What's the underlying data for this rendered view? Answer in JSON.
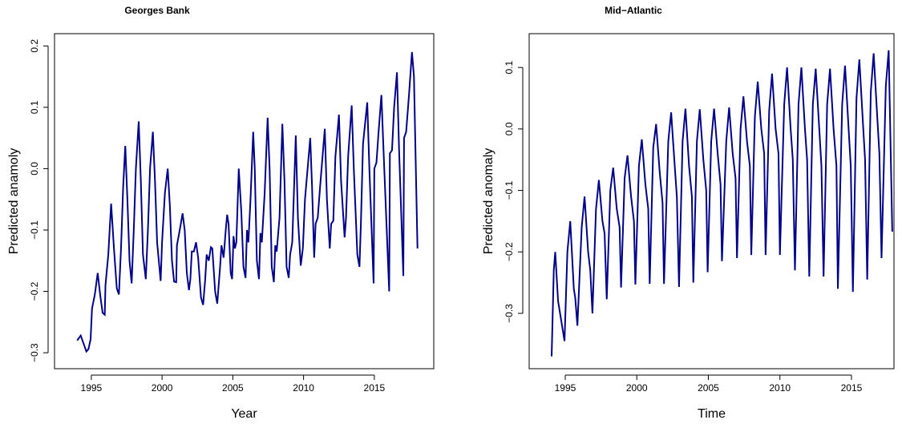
{
  "chart_data": [
    {
      "type": "line",
      "title": "Georges Bank",
      "x_label": "Year",
      "y_label": "Predicted anamoly",
      "color": "#00008B",
      "xlim": [
        1992.4,
        2019.2
      ],
      "xticks": [
        1995,
        2000,
        2005,
        2010,
        2015
      ],
      "ylim": [
        -0.326,
        0.22
      ],
      "yticks": [
        {
          "value": -0.3,
          "label": "−0.3"
        },
        {
          "value": -0.2,
          "label": "−0.2"
        },
        {
          "value": -0.1,
          "label": "−0.1"
        },
        {
          "value": 0,
          "label": "0.0"
        },
        0.1,
        0.2
      ],
      "x": [
        1994.0,
        1994.25,
        1994.5,
        1994.65,
        1994.8,
        1994.95,
        1995.05,
        1995.25,
        1995.45,
        1995.65,
        1995.8,
        1995.95,
        1996.0,
        1996.2,
        1996.4,
        1996.6,
        1996.8,
        1996.95,
        1997.1,
        1997.25,
        1997.4,
        1997.55,
        1997.7,
        1997.85,
        1998.0,
        1998.15,
        1998.35,
        1998.5,
        1998.65,
        1998.85,
        1999.0,
        1999.15,
        1999.35,
        1999.5,
        1999.65,
        1999.9,
        2000.0,
        2000.2,
        2000.4,
        2000.55,
        2000.7,
        2000.85,
        2001.0,
        2001.05,
        2001.25,
        2001.45,
        2001.6,
        2001.75,
        2001.9,
        2002.0,
        2002.1,
        2002.25,
        2002.4,
        2002.55,
        2002.75,
        2002.9,
        2003.05,
        2003.15,
        2003.3,
        2003.45,
        2003.55,
        2003.75,
        2003.9,
        2004.1,
        2004.2,
        2004.35,
        2004.5,
        2004.6,
        2004.7,
        2004.85,
        2004.95,
        2005.05,
        2005.15,
        2005.25,
        2005.42,
        2005.6,
        2005.75,
        2005.9,
        2006.0,
        2006.1,
        2006.25,
        2006.44,
        2006.55,
        2006.7,
        2006.85,
        2006.95,
        2007.05,
        2007.25,
        2007.46,
        2007.6,
        2007.75,
        2007.9,
        2008.0,
        2008.1,
        2008.3,
        2008.5,
        2008.65,
        2008.8,
        2008.95,
        2009.05,
        2009.2,
        2009.45,
        2009.6,
        2009.8,
        2009.95,
        2010.1,
        2010.47,
        2010.6,
        2010.75,
        2010.85,
        2011.0,
        2011.2,
        2011.5,
        2011.65,
        2011.85,
        2011.95,
        2012.1,
        2012.25,
        2012.5,
        2012.65,
        2012.9,
        2013.0,
        2013.15,
        2013.4,
        2013.55,
        2013.8,
        2013.95,
        2014.05,
        2014.2,
        2014.5,
        2014.65,
        2014.95,
        2015.0,
        2015.15,
        2015.3,
        2015.5,
        2015.65,
        2016.05,
        2016.1,
        2016.25,
        2016.4,
        2016.6,
        2016.75,
        2017.05,
        2017.1,
        2017.25,
        2017.45,
        2017.66,
        2017.8,
        2018.05
      ],
      "values": [
        -0.28,
        -0.272,
        -0.288,
        -0.298,
        -0.294,
        -0.278,
        -0.228,
        -0.205,
        -0.17,
        -0.21,
        -0.235,
        -0.238,
        -0.19,
        -0.14,
        -0.057,
        -0.13,
        -0.195,
        -0.205,
        -0.13,
        -0.03,
        0.037,
        -0.05,
        -0.15,
        -0.187,
        -0.1,
        0.0,
        0.077,
        -0.02,
        -0.14,
        -0.18,
        -0.1,
        0.0,
        0.06,
        -0.02,
        -0.12,
        -0.183,
        -0.12,
        -0.04,
        0.0,
        -0.06,
        -0.15,
        -0.184,
        -0.185,
        -0.125,
        -0.1,
        -0.073,
        -0.1,
        -0.17,
        -0.198,
        -0.18,
        -0.135,
        -0.135,
        -0.12,
        -0.145,
        -0.21,
        -0.222,
        -0.18,
        -0.14,
        -0.15,
        -0.128,
        -0.13,
        -0.2,
        -0.22,
        -0.16,
        -0.125,
        -0.145,
        -0.1,
        -0.075,
        -0.09,
        -0.17,
        -0.18,
        -0.11,
        -0.13,
        -0.12,
        0.0,
        -0.07,
        -0.16,
        -0.178,
        -0.1,
        -0.12,
        -0.05,
        0.06,
        0.0,
        -0.15,
        -0.18,
        -0.105,
        -0.12,
        -0.04,
        0.083,
        0.0,
        -0.16,
        -0.185,
        -0.125,
        -0.135,
        -0.08,
        0.073,
        -0.02,
        -0.16,
        -0.178,
        -0.14,
        -0.12,
        0.054,
        -0.08,
        -0.158,
        -0.13,
        -0.05,
        0.05,
        -0.03,
        -0.145,
        -0.09,
        -0.08,
        -0.02,
        0.065,
        -0.05,
        -0.13,
        -0.09,
        -0.085,
        0.02,
        0.088,
        -0.02,
        -0.112,
        -0.08,
        0.02,
        0.103,
        0.0,
        -0.14,
        -0.16,
        -0.09,
        0.04,
        0.108,
        0.0,
        -0.187,
        0.0,
        0.01,
        0.06,
        0.12,
        0.03,
        -0.2,
        0.025,
        0.03,
        0.1,
        0.157,
        0.03,
        -0.175,
        0.05,
        0.06,
        0.12,
        0.19,
        0.15,
        -0.13
      ]
    },
    {
      "type": "line",
      "title": "Mid−Atlantic",
      "x_label": "Time",
      "y_label": "Predicted anomaly",
      "color": "#00008B",
      "xlim": [
        1992.48,
        2017.97
      ],
      "xticks": [
        1995,
        2000,
        2005,
        2010,
        2015
      ],
      "ylim": [
        -0.39,
        0.155
      ],
      "yticks": [
        {
          "value": -0.3,
          "label": "−0.3"
        },
        {
          "value": -0.2,
          "label": "−0.2"
        },
        {
          "value": -0.1,
          "label": "−0.1"
        },
        {
          "value": 0,
          "label": "0.0"
        },
        0.1
      ],
      "x": [
        1994.05,
        1994.2,
        1994.3,
        1994.5,
        1994.95,
        1995.15,
        1995.35,
        1995.6,
        1995.7,
        1995.85,
        1996.15,
        1996.35,
        1996.6,
        1996.75,
        1996.9,
        1997.15,
        1997.35,
        1997.6,
        1997.75,
        1997.9,
        1998.15,
        1998.35,
        1998.6,
        1998.8,
        1998.9,
        1999.15,
        1999.35,
        1999.6,
        1999.8,
        1999.9,
        2000.15,
        2000.35,
        2000.6,
        2000.8,
        2000.9,
        2001.15,
        2001.35,
        2001.6,
        2001.8,
        2001.9,
        2002.2,
        2002.4,
        2002.65,
        2002.8,
        2002.95,
        2003.2,
        2003.4,
        2003.65,
        2003.85,
        2003.95,
        2004.2,
        2004.4,
        2004.65,
        2004.85,
        2004.95,
        2005.2,
        2005.4,
        2005.65,
        2005.85,
        2005.95,
        2006.25,
        2006.45,
        2006.7,
        2006.9,
        2007.0,
        2007.25,
        2007.45,
        2007.7,
        2007.9,
        2008.0,
        2008.25,
        2008.45,
        2008.7,
        2008.9,
        2009.0,
        2009.25,
        2009.45,
        2009.7,
        2009.9,
        2010.0,
        2010.3,
        2010.5,
        2010.75,
        2010.9,
        2011.05,
        2011.3,
        2011.5,
        2011.75,
        2011.9,
        2012.05,
        2012.3,
        2012.5,
        2012.75,
        2012.9,
        2013.05,
        2013.3,
        2013.5,
        2013.75,
        2013.95,
        2014.05,
        2014.35,
        2014.55,
        2014.8,
        2014.95,
        2015.1,
        2015.35,
        2015.55,
        2015.8,
        2015.95,
        2016.1,
        2016.35,
        2016.55,
        2016.8,
        2016.95,
        2017.1,
        2017.4,
        2017.6,
        2017.85
      ],
      "values": [
        -0.37,
        -0.23,
        -0.2,
        -0.28,
        -0.345,
        -0.2,
        -0.15,
        -0.26,
        -0.275,
        -0.32,
        -0.16,
        -0.11,
        -0.2,
        -0.23,
        -0.3,
        -0.13,
        -0.083,
        -0.15,
        -0.17,
        -0.277,
        -0.1,
        -0.063,
        -0.13,
        -0.16,
        -0.258,
        -0.08,
        -0.043,
        -0.11,
        -0.15,
        -0.253,
        -0.06,
        -0.017,
        -0.09,
        -0.13,
        -0.252,
        -0.03,
        0.008,
        -0.07,
        -0.12,
        -0.252,
        -0.02,
        0.027,
        -0.06,
        -0.11,
        -0.257,
        -0.02,
        0.033,
        -0.06,
        -0.11,
        -0.25,
        -0.02,
        0.032,
        -0.05,
        -0.1,
        -0.233,
        -0.02,
        0.033,
        -0.04,
        -0.09,
        -0.215,
        -0.02,
        0.035,
        -0.04,
        -0.08,
        -0.21,
        0.0,
        0.053,
        -0.02,
        -0.06,
        -0.205,
        0.02,
        0.077,
        0.0,
        -0.04,
        -0.205,
        0.03,
        0.09,
        0.0,
        -0.04,
        -0.205,
        0.04,
        0.1,
        0.0,
        -0.05,
        -0.23,
        0.04,
        0.1,
        0.0,
        -0.05,
        -0.24,
        0.04,
        0.098,
        0.0,
        -0.06,
        -0.24,
        0.04,
        0.098,
        0.0,
        -0.06,
        -0.26,
        0.04,
        0.103,
        0.0,
        -0.06,
        -0.265,
        0.05,
        0.113,
        0.01,
        -0.05,
        -0.245,
        0.06,
        0.123,
        0.02,
        -0.04,
        -0.21,
        0.07,
        0.128,
        -0.167
      ]
    }
  ]
}
